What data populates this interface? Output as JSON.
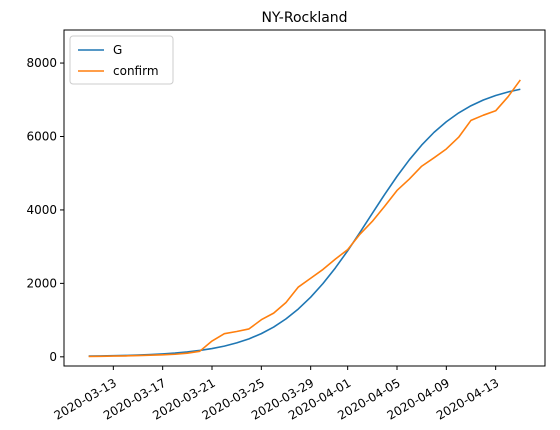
{
  "chart_data": {
    "type": "line",
    "title": "NY-Rockland",
    "xlabel": "",
    "ylabel": "",
    "x_type": "date",
    "x": [
      "2020-03-11",
      "2020-03-12",
      "2020-03-13",
      "2020-03-14",
      "2020-03-15",
      "2020-03-16",
      "2020-03-17",
      "2020-03-18",
      "2020-03-19",
      "2020-03-20",
      "2020-03-21",
      "2020-03-22",
      "2020-03-23",
      "2020-03-24",
      "2020-03-25",
      "2020-03-26",
      "2020-03-27",
      "2020-03-28",
      "2020-03-29",
      "2020-03-30",
      "2020-03-31",
      "2020-04-01",
      "2020-04-02",
      "2020-04-03",
      "2020-04-04",
      "2020-04-05",
      "2020-04-06",
      "2020-04-07",
      "2020-04-08",
      "2020-04-09",
      "2020-04-10",
      "2020-04-11",
      "2020-04-12",
      "2020-04-13",
      "2020-04-14",
      "2020-04-15"
    ],
    "xlim": [
      "2020-03-09",
      "2020-04-17"
    ],
    "ylim": [
      -250,
      8900
    ],
    "x_ticks": [
      "2020-03-13",
      "2020-03-17",
      "2020-03-21",
      "2020-03-25",
      "2020-03-29",
      "2020-04-01",
      "2020-04-05",
      "2020-04-09",
      "2020-04-13"
    ],
    "y_ticks": [
      0,
      2000,
      4000,
      6000,
      8000
    ],
    "legend_position": "top-left",
    "grid": false,
    "series": [
      {
        "name": "G",
        "color": "#1f77b4",
        "values": [
          20,
          24,
          30,
          37,
          48,
          61,
          79,
          102,
          133,
          173,
          225,
          292,
          379,
          490,
          632,
          811,
          1033,
          1303,
          1623,
          1996,
          2420,
          2888,
          3390,
          3908,
          4423,
          4914,
          5365,
          5766,
          6112,
          6402,
          6643,
          6838,
          6993,
          7116,
          7212,
          7287
        ]
      },
      {
        "name": "confirm",
        "color": "#ff7f0e",
        "values": [
          10,
          15,
          20,
          25,
          35,
          45,
          55,
          70,
          100,
          150,
          430,
          630,
          690,
          760,
          1010,
          1190,
          1480,
          1900,
          2140,
          2380,
          2660,
          2920,
          3340,
          3690,
          4100,
          4530,
          4840,
          5190,
          5420,
          5660,
          5980,
          6440,
          6580,
          6700,
          7080,
          7540
        ]
      }
    ]
  }
}
